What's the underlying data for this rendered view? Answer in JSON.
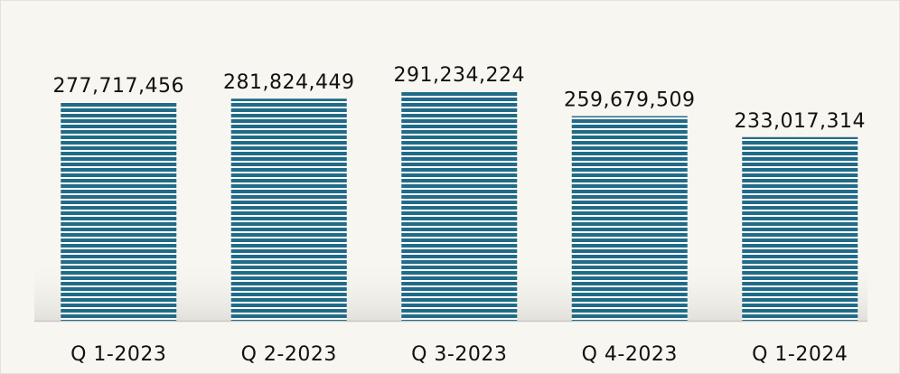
{
  "chart_data": {
    "type": "bar",
    "categories": [
      "Q 1-2023",
      "Q 2-2023",
      "Q 3-2023",
      "Q 4-2023",
      "Q 1-2024"
    ],
    "values": [
      277717456,
      281824449,
      291234224,
      259679509,
      233017314
    ],
    "value_labels": [
      "277,717,456",
      "281,824,449",
      "291,234,224",
      "259,679,509",
      "233,017,314"
    ],
    "color": "#216b89"
  }
}
